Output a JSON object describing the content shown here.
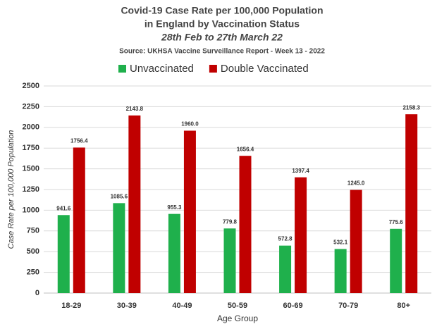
{
  "chart_data": {
    "type": "bar",
    "title": [
      "Covid-19 Case Rate per 100,000 Population",
      "in England by Vaccination Status"
    ],
    "subtitle": "28th Feb to 27th March 22",
    "source": "Source: UKHSA Vaccine Surveillance Report - Week 13 - 2022",
    "x_label": "Age Group",
    "y_label": "Case Rate per 100,000 Population",
    "categories": [
      "18-29",
      "30-39",
      "40-49",
      "50-59",
      "60-69",
      "70-79",
      "80+"
    ],
    "series": [
      {
        "name": "Unvaccinated",
        "color": "#1fb04c",
        "values": [
          941.6,
          1085.6,
          955.3,
          779.8,
          572.8,
          532.1,
          775.6
        ],
        "value_labels": [
          "941.6",
          "1085.6",
          "955.3",
          "779.8",
          "572.8",
          "532.1",
          "775.6"
        ]
      },
      {
        "name": "Double Vaccinated",
        "color": "#c00000",
        "values": [
          1756.4,
          2143.8,
          1960.0,
          1656.4,
          1397.4,
          1245.0,
          2158.3
        ],
        "value_labels": [
          "1756.4",
          "2143.8",
          "1960.0",
          "1656.4",
          "1397.4",
          "1245.0",
          "2158.3"
        ]
      }
    ],
    "ylim": [
      0,
      2500
    ],
    "yticks": [
      0,
      250,
      500,
      750,
      1000,
      1250,
      1500,
      1750,
      2000,
      2250,
      2500
    ],
    "grid": true
  }
}
